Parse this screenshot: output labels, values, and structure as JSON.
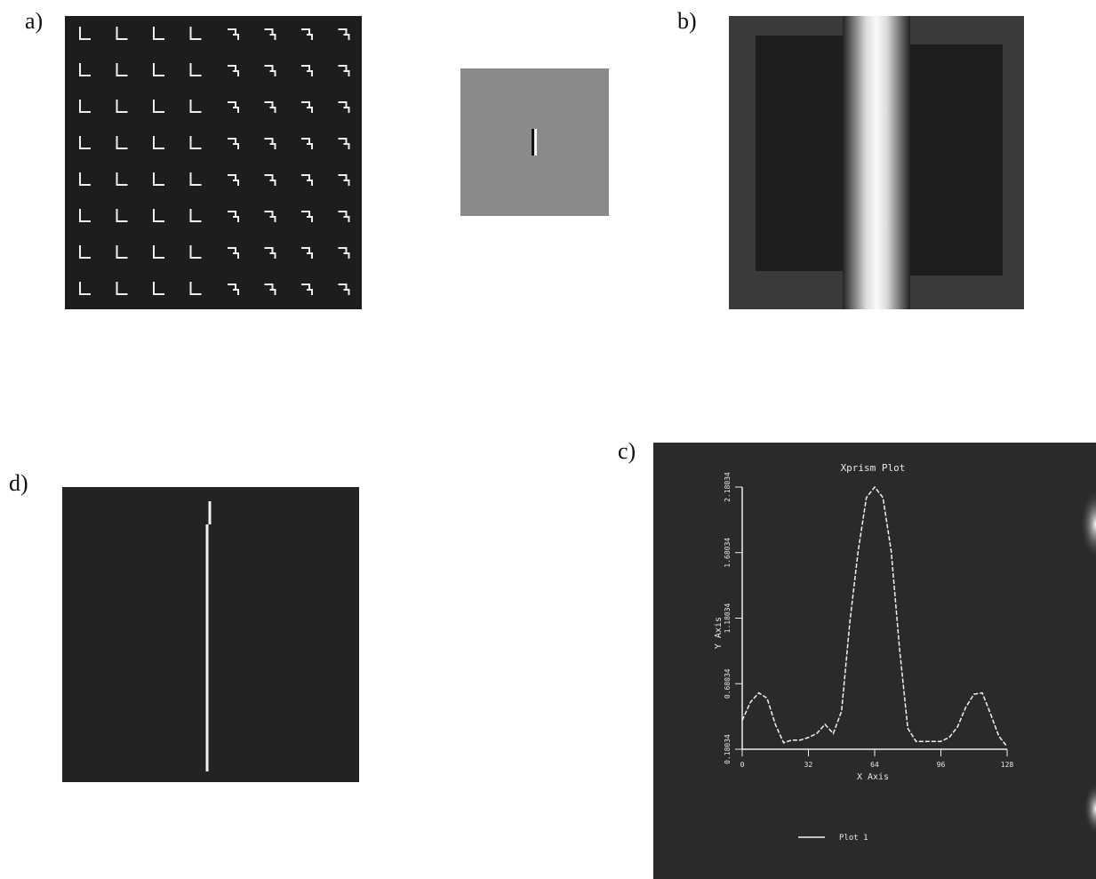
{
  "panels": {
    "a": {
      "label": "a)"
    },
    "b": {
      "label": "b)"
    },
    "c": {
      "label": "c)"
    },
    "d": {
      "label": "d)"
    }
  },
  "chart_data": {
    "type": "line",
    "title": "Xprism Plot",
    "x_label": "X Axis",
    "y_label": "Y Axis",
    "x": [
      0,
      4,
      8,
      12,
      16,
      20,
      24,
      28,
      32,
      36,
      40,
      44,
      48,
      52,
      56,
      60,
      64,
      68,
      72,
      76,
      80,
      84,
      88,
      92,
      96,
      100,
      104,
      108,
      112,
      116,
      120,
      124,
      128
    ],
    "series": [
      {
        "name": "Plot 1",
        "color": "#f2f2f2",
        "values": [
          0.4,
          0.54,
          0.61,
          0.57,
          0.37,
          0.23,
          0.25,
          0.25,
          0.27,
          0.3,
          0.37,
          0.3,
          0.47,
          1.15,
          1.69,
          2.1,
          2.18,
          2.1,
          1.69,
          0.95,
          0.34,
          0.24,
          0.24,
          0.24,
          0.24,
          0.27,
          0.35,
          0.5,
          0.6,
          0.61,
          0.45,
          0.28,
          0.2
        ]
      }
    ],
    "xlim": [
      0,
      128
    ],
    "xticks": [
      0,
      32,
      64,
      96,
      128
    ],
    "ylim": [
      0.18034,
      2.18034
    ],
    "yticks": [
      0.18034,
      0.68034,
      1.18034,
      1.68034,
      2.18034
    ]
  }
}
